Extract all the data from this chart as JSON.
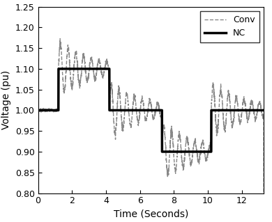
{
  "title": "",
  "xlabel": "Time (Seconds)",
  "ylabel": "Voltage (pu)",
  "xlim": [
    0,
    13.3
  ],
  "ylim": [
    0.8,
    1.25
  ],
  "xticks": [
    0,
    2,
    4,
    6,
    8,
    10,
    12
  ],
  "yticks": [
    0.8,
    0.85,
    0.9,
    0.95,
    1.0,
    1.05,
    1.1,
    1.15,
    1.2,
    1.25
  ],
  "nc_color": "#000000",
  "conv_color": "#888888",
  "nc_lw": 2.5,
  "conv_lw": 1.0,
  "legend_labels": [
    "Conv",
    "NC"
  ],
  "bg_color": "#ffffff",
  "figsize": [
    3.9,
    3.19
  ],
  "dpi": 100,
  "step_times": [
    0,
    1.2,
    4.2,
    7.3,
    10.2,
    13.3
  ],
  "step_values": [
    1.0,
    1.1,
    1.0,
    0.9,
    1.0
  ],
  "osc_freq": 2.2,
  "osc_decay": 0.45,
  "osc_amp": 0.065
}
